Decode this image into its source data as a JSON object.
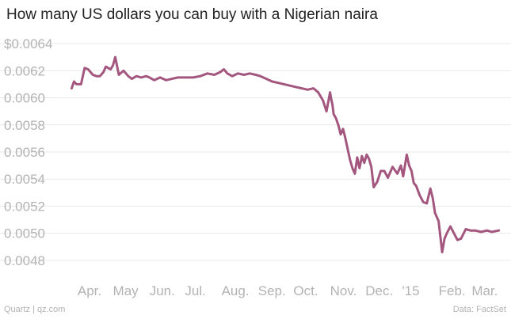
{
  "title": "How many US dollars you can buy with a Nigerian naira",
  "footer": {
    "source": "Quartz | qz.com",
    "data": "Data: FactSet"
  },
  "colors": {
    "line": "#a3577f",
    "grid": "#e9e9e9",
    "tick_text": "#b3b3b3",
    "title": "#222222"
  },
  "chart_data": {
    "type": "line",
    "title": "How many US dollars you can buy with a Nigerian naira",
    "xlabel": "",
    "ylabel": "",
    "ylim": [
      0.0047,
      0.0065
    ],
    "yticks": [
      0.0048,
      0.005,
      0.0052,
      0.0054,
      0.0056,
      0.0058,
      0.006,
      0.0062,
      0.0064
    ],
    "ytick_labels": [
      "0.0048",
      "0.0050",
      "0.0052",
      "0.0054",
      "0.0056",
      "0.0058",
      "0.0060",
      "0.0062",
      "$0.0064"
    ],
    "xlim": [
      "2014-03-20",
      "2015-03-31"
    ],
    "xticks": [
      {
        "label": "Apr.",
        "date": "2014-04-01"
      },
      {
        "label": "May",
        "date": "2014-05-01"
      },
      {
        "label": "Jun.",
        "date": "2014-06-01"
      },
      {
        "label": "Jul.",
        "date": "2014-07-01"
      },
      {
        "label": "Aug.",
        "date": "2014-08-01"
      },
      {
        "label": "Sep.",
        "date": "2014-09-01"
      },
      {
        "label": "Oct.",
        "date": "2014-10-01"
      },
      {
        "label": "Nov.",
        "date": "2014-11-01"
      },
      {
        "label": "Dec.",
        "date": "2014-12-01"
      },
      {
        "label": "'15",
        "date": "2015-01-01"
      },
      {
        "label": "Feb.",
        "date": "2015-02-01"
      },
      {
        "label": "Mar.",
        "date": "2015-03-01"
      }
    ],
    "grid": true,
    "series": [
      {
        "x": [
          "2014-03-27",
          "2014-03-29",
          "2014-03-31",
          "2014-04-04",
          "2014-04-07",
          "2014-04-10",
          "2014-04-14",
          "2014-04-17",
          "2014-04-20",
          "2014-04-23",
          "2014-04-25",
          "2014-04-27",
          "2014-04-29",
          "2014-05-01",
          "2014-05-03",
          "2014-05-06",
          "2014-05-10",
          "2014-05-14",
          "2014-05-17",
          "2014-05-21",
          "2014-05-25",
          "2014-05-29",
          "2014-06-01",
          "2014-06-05",
          "2014-06-10",
          "2014-06-15",
          "2014-06-20",
          "2014-06-25",
          "2014-07-01",
          "2014-07-08",
          "2014-07-14",
          "2014-07-20",
          "2014-07-26",
          "2014-07-31",
          "2014-08-03",
          "2014-08-06",
          "2014-08-10",
          "2014-08-15",
          "2014-08-20",
          "2014-08-25",
          "2014-08-30",
          "2014-09-03",
          "2014-09-08",
          "2014-09-13",
          "2014-09-18",
          "2014-09-23",
          "2014-09-28",
          "2014-10-03",
          "2014-10-08",
          "2014-10-13",
          "2014-10-18",
          "2014-10-22",
          "2014-10-26",
          "2014-10-29",
          "2014-11-01",
          "2014-11-02",
          "2014-11-03",
          "2014-11-04",
          "2014-11-06",
          "2014-11-08",
          "2014-11-10",
          "2014-11-12",
          "2014-11-14",
          "2014-11-16",
          "2014-11-18",
          "2014-11-20",
          "2014-11-22",
          "2014-11-24",
          "2014-11-26",
          "2014-11-28",
          "2014-11-30",
          "2014-12-02",
          "2014-12-04",
          "2014-12-06",
          "2014-12-08",
          "2014-12-11",
          "2014-12-14",
          "2014-12-17",
          "2014-12-20",
          "2014-12-24",
          "2014-12-28",
          "2014-12-31",
          "2015-01-02",
          "2015-01-05",
          "2015-01-07",
          "2015-01-09",
          "2015-01-11",
          "2015-01-13",
          "2015-01-16",
          "2015-01-19",
          "2015-01-22",
          "2015-01-25",
          "2015-01-27",
          "2015-01-29",
          "2015-02-01",
          "2015-02-04",
          "2015-02-06",
          "2015-02-08",
          "2015-02-11",
          "2015-02-14",
          "2015-02-17",
          "2015-02-20",
          "2015-02-24",
          "2015-02-28",
          "2015-03-04",
          "2015-03-09",
          "2015-03-14",
          "2015-03-18",
          "2015-03-24"
        ],
        "values": [
          0.00607,
          0.00612,
          0.0061,
          0.0061,
          0.00622,
          0.00621,
          0.00617,
          0.00616,
          0.00616,
          0.00619,
          0.00623,
          0.00622,
          0.00621,
          0.00624,
          0.0063,
          0.00617,
          0.0062,
          0.00616,
          0.00614,
          0.00616,
          0.00615,
          0.00616,
          0.00615,
          0.00613,
          0.00615,
          0.00613,
          0.00614,
          0.00615,
          0.00615,
          0.00615,
          0.00616,
          0.00618,
          0.00617,
          0.00619,
          0.00621,
          0.00618,
          0.00616,
          0.00618,
          0.00617,
          0.00618,
          0.00617,
          0.00616,
          0.00614,
          0.00612,
          0.00611,
          0.0061,
          0.00609,
          0.00608,
          0.00607,
          0.00606,
          0.00607,
          0.00604,
          0.00598,
          0.0059,
          0.00604,
          0.00599,
          0.00595,
          0.00588,
          0.00585,
          0.0058,
          0.00573,
          0.00577,
          0.0057,
          0.00562,
          0.00554,
          0.00548,
          0.00544,
          0.00556,
          0.00548,
          0.00557,
          0.00552,
          0.00558,
          0.00555,
          0.00549,
          0.00534,
          0.00538,
          0.00546,
          0.00546,
          0.00541,
          0.00549,
          0.00544,
          0.0055,
          0.00542,
          0.00558,
          0.0055,
          0.00546,
          0.00537,
          0.00535,
          0.00528,
          0.00523,
          0.00522,
          0.00533,
          0.00526,
          0.00515,
          0.00509,
          0.00486,
          0.00496,
          0.005,
          0.00505,
          0.005,
          0.00495,
          0.00496,
          0.00503,
          0.00502,
          0.00502,
          0.00501,
          0.00502,
          0.00501,
          0.00502
        ]
      }
    ]
  }
}
